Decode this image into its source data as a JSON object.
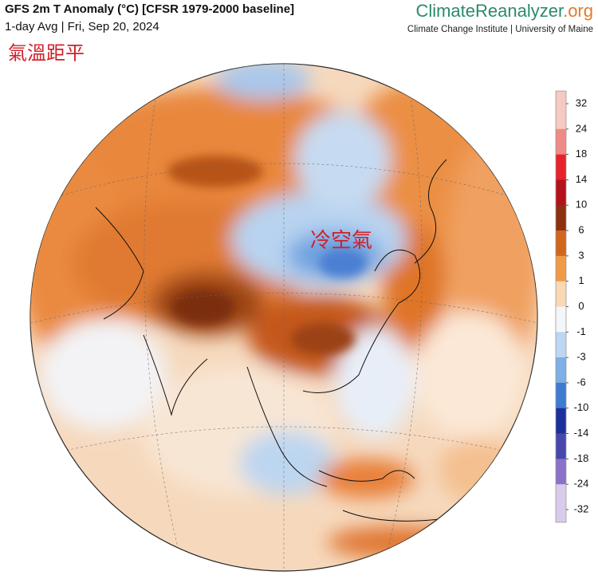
{
  "header": {
    "title": "GFS 2m T Anomaly (°C) [CFSR 1979-2000 baseline]",
    "subtitle": "1-day Avg | Fri, Sep 20, 2024",
    "brand_main": "ClimateReanalyzer",
    "brand_suffix": ".org",
    "institute": "Climate Change Institute | University of Maine"
  },
  "annotations": {
    "corner": "氣溫距平",
    "map_label": "冷空氣"
  },
  "colorbar": {
    "ticks": [
      32,
      24,
      18,
      14,
      10,
      6,
      3,
      1,
      0,
      -1,
      -3,
      -6,
      -10,
      -14,
      -18,
      -24,
      -32
    ],
    "colors": [
      "#f6c9c2",
      "#f08a86",
      "#e8222a",
      "#b3121a",
      "#8c3010",
      "#d2661c",
      "#f19a45",
      "#fad8b4",
      "#f3f6fb",
      "#bcd7f1",
      "#7cb0e6",
      "#3f7bd0",
      "#1d2f9c",
      "#4747ae",
      "#8a72c8",
      "#d9cbeb"
    ]
  }
}
